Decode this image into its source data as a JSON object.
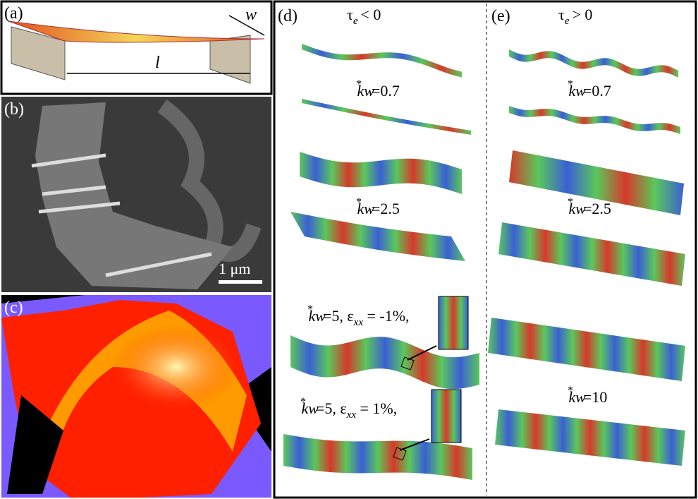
{
  "panels": {
    "a": {
      "label": "(a)",
      "width_symbol": "w",
      "length_symbol": "l"
    },
    "b": {
      "label": "(b)",
      "scale_bar": "1 μm"
    },
    "c": {
      "label": "(c)"
    },
    "d": {
      "label": "(d)",
      "header": {
        "symbol": "τ",
        "subscript": "e",
        "relation": "< 0"
      },
      "labels": [
        {
          "symbol": "kw",
          "star": "*",
          "value": "=0.7"
        },
        {
          "symbol": "kw",
          "star": "*",
          "value": "=2.5"
        },
        {
          "symbol": "kw",
          "star": "*",
          "value": "=5, ",
          "strain_symbol": "ε",
          "strain_subscript": "xx",
          "strain_value": " = -1%,"
        },
        {
          "symbol": "kw",
          "star": "*",
          "value": "=5, ",
          "strain_symbol": "ε",
          "strain_subscript": "xx",
          "strain_value": " = 1%,"
        }
      ]
    },
    "e": {
      "label": "(e)",
      "header": {
        "symbol": "τ",
        "subscript": "e",
        "relation": "> 0"
      },
      "labels": [
        {
          "symbol": "kw",
          "star": "*",
          "value": "=0.7"
        },
        {
          "symbol": "kw",
          "star": "*",
          "value": "=2.5"
        },
        {
          "symbol": "kw",
          "star": "*",
          "value": "=10"
        }
      ]
    }
  }
}
